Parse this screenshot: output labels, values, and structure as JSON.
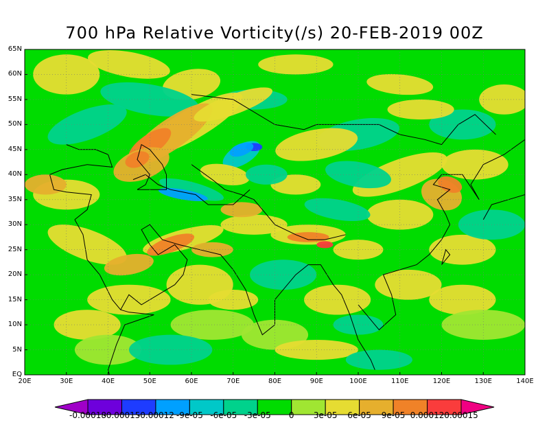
{
  "title": "700 hPa Relative Vorticity(/s) 20-FEB-2019 00Z",
  "map": {
    "lon_range": [
      20,
      140
    ],
    "lat_range": [
      0,
      65
    ],
    "lat_labels": [
      "EQ",
      "5N",
      "10N",
      "15N",
      "20N",
      "25N",
      "30N",
      "35N",
      "40N",
      "45N",
      "50N",
      "55N",
      "60N",
      "65N"
    ],
    "lon_labels": [
      "20E",
      "30E",
      "40E",
      "50E",
      "60E",
      "70E",
      "80E",
      "90E",
      "100E",
      "110E",
      "120E",
      "130E",
      "140E"
    ],
    "gridlines": true,
    "coastlines": true,
    "country_borders": true
  },
  "colorbar": {
    "labels": [
      "-0.00018",
      "-0.00015",
      "-0.00012",
      "-9e-05",
      "-6e-05",
      "-3e-05",
      "0",
      "3e-05",
      "6e-05",
      "9e-05",
      "0.00012",
      "0.00015"
    ],
    "colors": [
      "#a000c8",
      "#6e00dc",
      "#1e3cff",
      "#00a0ff",
      "#00c8c8",
      "#00d28c",
      "#00dc00",
      "#a0e632",
      "#e6dc32",
      "#e6af2d",
      "#f08228",
      "#fa3c3c",
      "#f00082"
    ]
  }
}
